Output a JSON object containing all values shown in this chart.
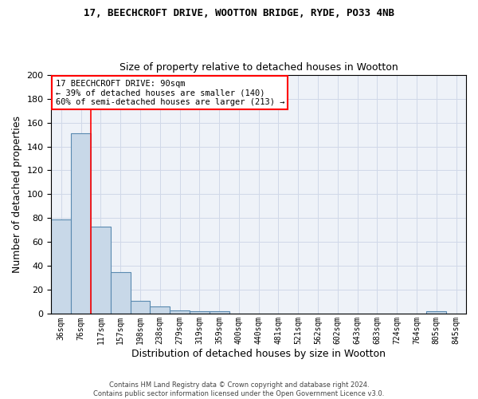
{
  "title1": "17, BEECHCROFT DRIVE, WOOTTON BRIDGE, RYDE, PO33 4NB",
  "title2": "Size of property relative to detached houses in Wootton",
  "xlabel": "Distribution of detached houses by size in Wootton",
  "ylabel": "Number of detached properties",
  "categories": [
    "36sqm",
    "76sqm",
    "117sqm",
    "157sqm",
    "198sqm",
    "238sqm",
    "279sqm",
    "319sqm",
    "359sqm",
    "400sqm",
    "440sqm",
    "481sqm",
    "521sqm",
    "562sqm",
    "602sqm",
    "643sqm",
    "683sqm",
    "724sqm",
    "764sqm",
    "805sqm",
    "845sqm"
  ],
  "values": [
    79,
    151,
    73,
    35,
    11,
    6,
    3,
    2,
    2,
    0,
    0,
    0,
    0,
    0,
    0,
    0,
    0,
    0,
    0,
    2,
    0
  ],
  "bar_color": "#c8d8e8",
  "bar_edge_color": "#5a8ab0",
  "bar_edge_width": 0.8,
  "grid_color": "#d0d8e8",
  "bg_color": "#eef2f8",
  "red_line_x": 1.5,
  "annotation_text": "17 BEECHCROFT DRIVE: 90sqm\n← 39% of detached houses are smaller (140)\n60% of semi-detached houses are larger (213) →",
  "annotation_box_color": "white",
  "annotation_box_edgecolor": "red",
  "footer_line1": "Contains HM Land Registry data © Crown copyright and database right 2024.",
  "footer_line2": "Contains public sector information licensed under the Open Government Licence v3.0.",
  "ylim": [
    0,
    200
  ],
  "yticks": [
    0,
    20,
    40,
    60,
    80,
    100,
    120,
    140,
    160,
    180,
    200
  ]
}
